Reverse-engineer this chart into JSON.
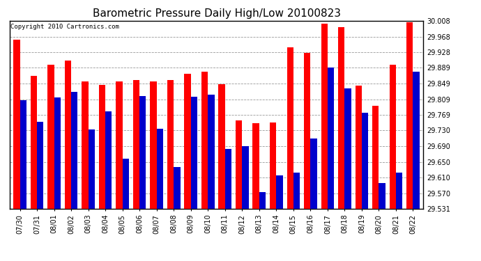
{
  "title": "Barometric Pressure Daily High/Low 20100823",
  "copyright": "Copyright 2010 Cartronics.com",
  "categories": [
    "07/30",
    "07/31",
    "08/01",
    "08/02",
    "08/03",
    "08/04",
    "08/05",
    "08/06",
    "08/07",
    "08/08",
    "08/09",
    "08/10",
    "08/11",
    "08/12",
    "08/13",
    "08/14",
    "08/15",
    "08/16",
    "08/17",
    "08/18",
    "08/19",
    "08/20",
    "08/21",
    "08/22"
  ],
  "highs": [
    29.961,
    29.869,
    29.896,
    29.908,
    29.855,
    29.845,
    29.855,
    29.858,
    29.855,
    29.858,
    29.873,
    29.879,
    29.848,
    29.755,
    29.748,
    29.75,
    29.94,
    29.927,
    30.001,
    29.992,
    29.843,
    29.793,
    29.896,
    30.005
  ],
  "lows": [
    29.806,
    29.752,
    29.813,
    29.827,
    29.732,
    29.779,
    29.658,
    29.817,
    29.734,
    29.637,
    29.815,
    29.82,
    29.683,
    29.69,
    29.574,
    29.615,
    29.622,
    29.71,
    29.889,
    29.836,
    29.775,
    29.597,
    29.622,
    29.879
  ],
  "high_color": "#ff0000",
  "low_color": "#0000cc",
  "bg_color": "#ffffff",
  "grid_color": "#999999",
  "ymin": 29.531,
  "ymax": 30.008,
  "yticks": [
    29.531,
    29.57,
    29.61,
    29.65,
    29.69,
    29.73,
    29.769,
    29.809,
    29.849,
    29.889,
    29.928,
    29.968,
    30.008
  ],
  "bar_width": 0.38,
  "title_fontsize": 11,
  "tick_fontsize": 7,
  "copyright_fontsize": 6.5
}
